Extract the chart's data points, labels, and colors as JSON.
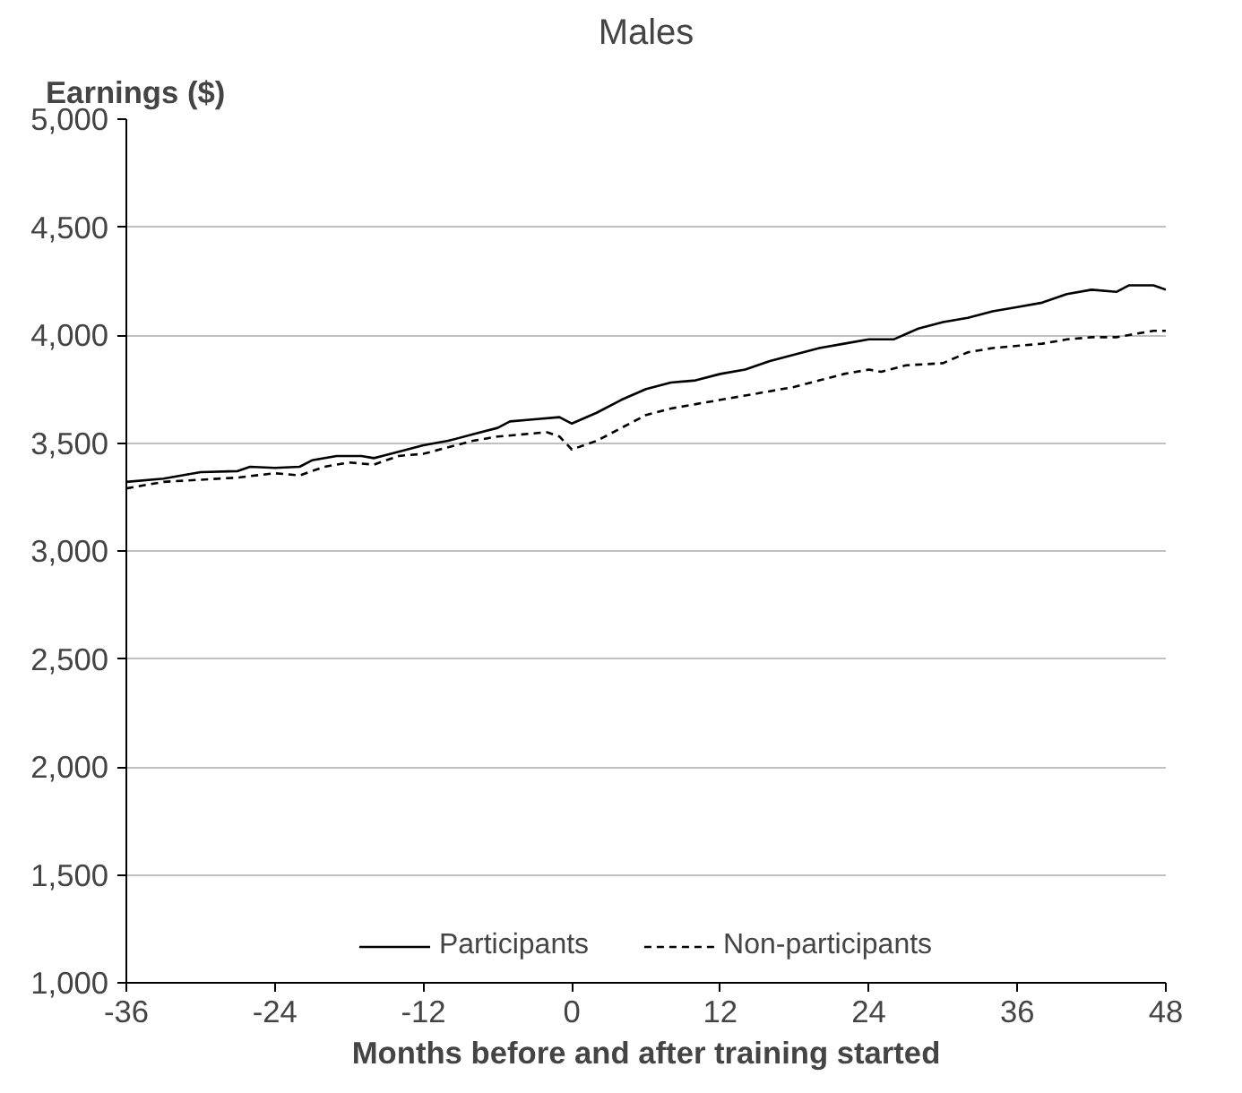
{
  "chart_data": {
    "type": "line",
    "title": "Males",
    "ylabel": "Earnings ($)",
    "xlabel": "Months before and after training started",
    "xlim": [
      -36,
      48
    ],
    "xticks": [
      -36,
      -24,
      -12,
      0,
      12,
      24,
      36,
      48
    ],
    "ylim": [
      1000,
      5000
    ],
    "yticks": [
      {
        "value": 1000,
        "label": "1,000"
      },
      {
        "value": 1500,
        "label": "1,500"
      },
      {
        "value": 2000,
        "label": "2,000"
      },
      {
        "value": 2500,
        "label": "2,500"
      },
      {
        "value": 3000,
        "label": "3,000"
      },
      {
        "value": 3500,
        "label": "3,500"
      },
      {
        "value": 4000,
        "label": "4,000"
      },
      {
        "value": 4500,
        "label": "4,500"
      },
      {
        "value": 5000,
        "label": "5,000"
      }
    ],
    "grid": "y",
    "legend": "bottom",
    "marker": "none",
    "series": [
      {
        "name": "Participants",
        "color": "#000000",
        "line_style": "solid",
        "x": [
          -36,
          -33,
          -30,
          -27,
          -26,
          -24,
          -22,
          -21,
          -19,
          -17,
          -16,
          -14,
          -12,
          -10,
          -8,
          -6,
          -5,
          -3,
          -1,
          0,
          2,
          4,
          6,
          8,
          10,
          12,
          14,
          16,
          18,
          20,
          22,
          24,
          26,
          28,
          30,
          32,
          34,
          36,
          38,
          40,
          42,
          44,
          45,
          47,
          48
        ],
        "values": [
          3320,
          3335,
          3365,
          3370,
          3390,
          3385,
          3390,
          3420,
          3440,
          3440,
          3430,
          3460,
          3490,
          3510,
          3540,
          3570,
          3600,
          3610,
          3620,
          3590,
          3640,
          3700,
          3750,
          3780,
          3790,
          3820,
          3840,
          3880,
          3910,
          3940,
          3960,
          3980,
          3980,
          4030,
          4060,
          4080,
          4110,
          4130,
          4150,
          4190,
          4210,
          4200,
          4230,
          4230,
          4210
        ]
      },
      {
        "name": "Non-participants",
        "color": "#000000",
        "line_style": "dashed",
        "x": [
          -36,
          -33,
          -30,
          -27,
          -24,
          -22,
          -20,
          -18,
          -16,
          -14,
          -12,
          -10,
          -8,
          -6,
          -4,
          -2,
          -1,
          0,
          2,
          4,
          6,
          8,
          10,
          12,
          14,
          16,
          18,
          20,
          22,
          24,
          25,
          27,
          30,
          32,
          34,
          36,
          38,
          40,
          42,
          44,
          45,
          47,
          48
        ],
        "values": [
          3290,
          3320,
          3330,
          3340,
          3360,
          3350,
          3390,
          3410,
          3400,
          3440,
          3450,
          3480,
          3510,
          3530,
          3540,
          3550,
          3530,
          3470,
          3510,
          3570,
          3630,
          3660,
          3680,
          3700,
          3720,
          3740,
          3760,
          3790,
          3820,
          3840,
          3830,
          3860,
          3870,
          3920,
          3940,
          3950,
          3960,
          3980,
          3990,
          3990,
          4000,
          4020,
          4020
        ]
      }
    ]
  }
}
